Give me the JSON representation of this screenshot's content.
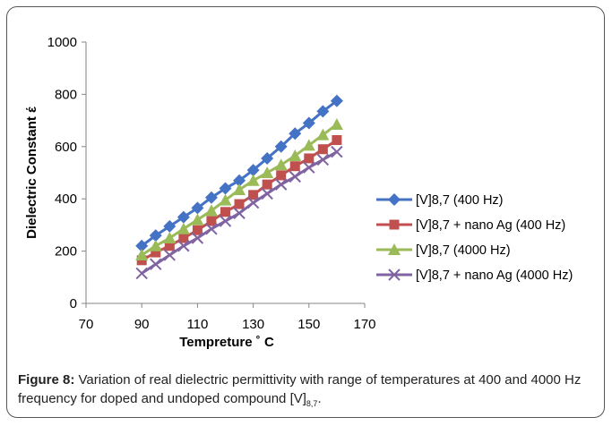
{
  "chart_data": {
    "type": "line",
    "xlabel": "Tempreture ˚ C",
    "ylabel": "Dielectric Constant έ",
    "xlim": [
      70,
      170
    ],
    "ylim": [
      0,
      1000
    ],
    "xticks": [
      70,
      90,
      110,
      130,
      150,
      170
    ],
    "yticks": [
      0,
      200,
      400,
      600,
      800,
      1000
    ],
    "grid": false,
    "legend_position": "right",
    "x": [
      90,
      95,
      100,
      105,
      110,
      115,
      120,
      125,
      130,
      135,
      140,
      145,
      150,
      155,
      160
    ],
    "series": [
      {
        "name": "[V]8,7 (400 Hz)",
        "color": "#4472C4",
        "marker": "diamond",
        "values": [
          220,
          260,
          295,
          330,
          365,
          405,
          440,
          470,
          510,
          555,
          600,
          650,
          690,
          735,
          775
        ]
      },
      {
        "name": "[V]8,7  + nano Ag (400 Hz)",
        "color": "#C0504D",
        "marker": "square",
        "values": [
          165,
          195,
          220,
          250,
          280,
          315,
          350,
          380,
          415,
          455,
          490,
          525,
          555,
          590,
          625
        ]
      },
      {
        "name": "[V]8,7 (4000 Hz)",
        "color": "#9BBB59",
        "marker": "triangle",
        "values": [
          185,
          220,
          250,
          285,
          320,
          355,
          395,
          435,
          470,
          500,
          530,
          565,
          605,
          645,
          685
        ]
      },
      {
        "name": "[V]8,7  + nano Ag (4000 Hz)",
        "color": "#8064A2",
        "marker": "x",
        "values": [
          115,
          150,
          185,
          220,
          250,
          285,
          315,
          345,
          385,
          420,
          455,
          485,
          520,
          550,
          580
        ]
      }
    ]
  },
  "caption": {
    "label": "Figure 8:",
    "text_before_sub": " Variation of real dielectric permittivity with range of temperatures at 400 and 4000 Hz frequency for doped and undoped compound [V]",
    "sub": "8,7",
    "text_after_sub": "."
  }
}
